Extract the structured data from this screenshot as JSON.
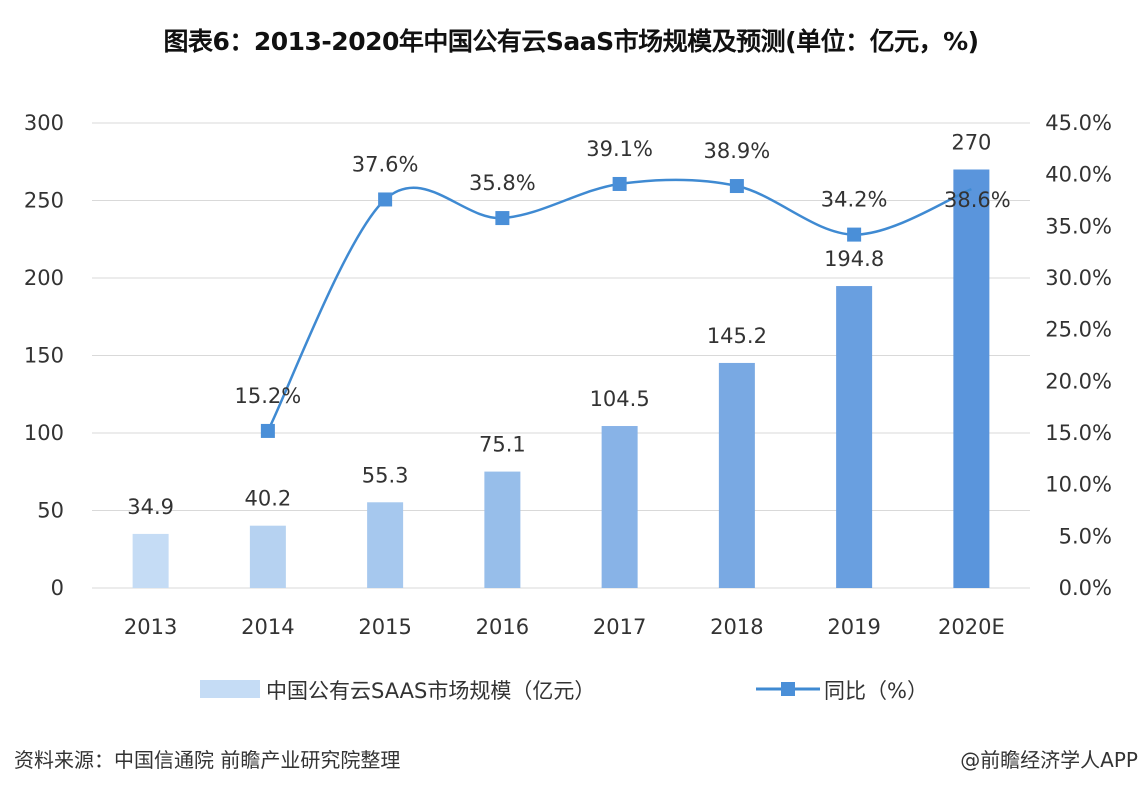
{
  "chart_data": {
    "type": "bar+line",
    "title": "图表6：2013-2020年中国公有云SaaS市场规模及预测(单位：亿元，%)",
    "categories": [
      "2013",
      "2014",
      "2015",
      "2016",
      "2017",
      "2018",
      "2019",
      "2020E"
    ],
    "series": [
      {
        "name": "中国公有云SAAS市场规模（亿元）",
        "type": "bar",
        "axis": "left",
        "values": [
          34.9,
          40.2,
          55.3,
          75.1,
          104.5,
          145.2,
          194.8,
          270
        ],
        "labels": [
          "34.9",
          "40.2",
          "55.3",
          "75.1",
          "104.5",
          "145.2",
          "194.8",
          "270"
        ]
      },
      {
        "name": "同比（%）",
        "type": "line",
        "axis": "right",
        "smooth": true,
        "values": [
          null,
          15.2,
          37.6,
          35.8,
          39.1,
          38.9,
          34.2,
          38.6
        ],
        "labels": [
          "",
          "15.2%",
          "37.6%",
          "35.8%",
          "39.1%",
          "38.9%",
          "34.2%",
          "38.6%"
        ]
      }
    ],
    "left_axis": {
      "ylim": [
        0,
        300
      ],
      "ticks": [
        "0",
        "50",
        "100",
        "150",
        "200",
        "250",
        "300"
      ]
    },
    "right_axis": {
      "ylim": [
        0,
        45
      ],
      "ticks": [
        "0.0%",
        "5.0%",
        "10.0%",
        "15.0%",
        "20.0%",
        "25.0%",
        "30.0%",
        "35.0%",
        "40.0%",
        "45.0%"
      ]
    },
    "grid": true,
    "legend": "bottom",
    "colors": {
      "bar_light": "#c5dcf5",
      "bar_dark": "#5a95dc",
      "line": "#3f8ad2",
      "marker": "#4a8fd8",
      "grid": "#d9d9d9"
    }
  },
  "source": "资料来源：中国信通院 前瞻产业研究院整理",
  "credit": "@前瞻经济学人APP"
}
